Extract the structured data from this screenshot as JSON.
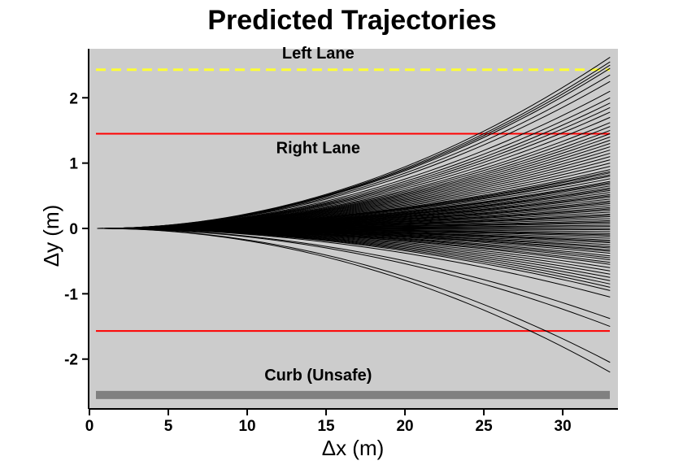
{
  "chart_data": {
    "type": "line",
    "title": "Predicted Trajectories",
    "xlabel": "Δx (m)",
    "ylabel": "Δy (m)",
    "xlim": [
      0,
      33.5
    ],
    "ylim": [
      -2.75,
      2.75
    ],
    "x_ticks": [
      0,
      5,
      10,
      15,
      20,
      25,
      30
    ],
    "y_ticks": [
      -2,
      -1,
      0,
      1,
      2
    ],
    "background": "#cccccc",
    "grid": false,
    "legend": "none",
    "reference_lines": [
      {
        "label": "Left Lane",
        "y": 2.43,
        "color": "#ffff33",
        "style": "dashed",
        "label_x": 14.5,
        "label_y": 2.6
      },
      {
        "label": "",
        "y": 1.45,
        "color": "#ff0000",
        "style": "solid"
      },
      {
        "label": "Right Lane",
        "y": -1.57,
        "color": "#ff0000",
        "style": "solid",
        "label_x": 14.5,
        "label_y": 1.15
      },
      {
        "label": "Curb (Unsafe)",
        "y": -2.55,
        "color": "#808080",
        "style": "thick",
        "label_x": 14.5,
        "label_y": -2.33
      }
    ],
    "trajectories": {
      "x_start": 0.5,
      "x_end": 33,
      "shape": "quadratic",
      "color": "#000000",
      "end_dy": [
        2.62,
        2.55,
        2.5,
        2.45,
        2.35,
        2.25,
        2.1,
        2.0,
        1.92,
        1.85,
        1.78,
        1.7,
        1.62,
        1.56,
        1.5,
        1.45,
        1.4,
        1.35,
        1.3,
        1.25,
        1.2,
        1.15,
        1.1,
        1.05,
        1.0,
        0.95,
        0.9,
        0.87,
        0.85,
        0.82,
        0.8,
        0.76,
        0.72,
        0.7,
        0.68,
        0.65,
        0.62,
        0.6,
        0.58,
        0.55,
        0.52,
        0.5,
        0.48,
        0.45,
        0.42,
        0.4,
        0.38,
        0.35,
        0.32,
        0.3,
        0.28,
        0.25,
        0.22,
        0.2,
        0.18,
        0.15,
        0.12,
        0.1,
        0.08,
        0.05,
        0.03,
        0.0,
        -0.02,
        -0.05,
        -0.08,
        -0.1,
        -0.12,
        -0.15,
        -0.18,
        -0.2,
        -0.22,
        -0.25,
        -0.28,
        -0.3,
        -0.33,
        -0.35,
        -0.38,
        -0.42,
        -0.45,
        -0.48,
        -0.52,
        -0.55,
        -0.6,
        -0.65,
        -0.7,
        -0.75,
        -0.8,
        -0.85,
        -0.9,
        -0.95,
        -1.05,
        -1.38,
        -1.5,
        -2.05,
        -2.2
      ]
    }
  }
}
